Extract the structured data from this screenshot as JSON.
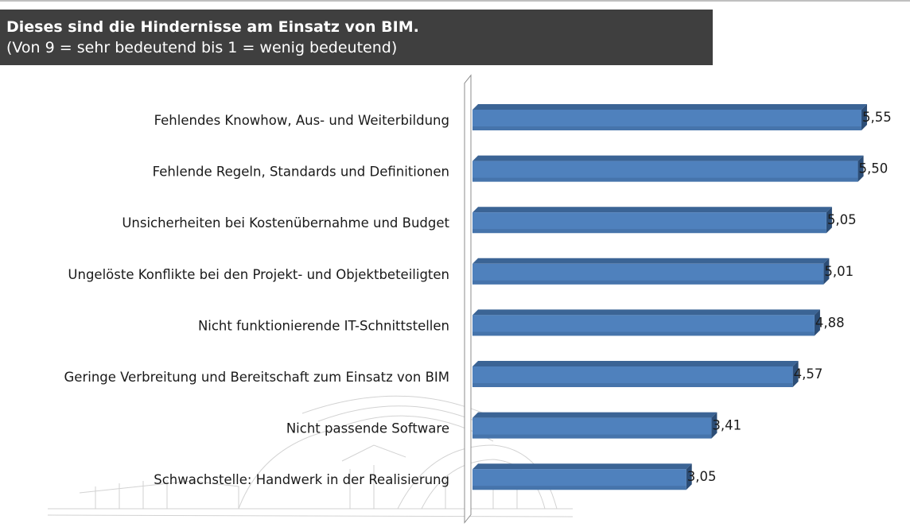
{
  "header": {
    "title": "Dieses sind die Hindernisse am Einsatz von BIM.",
    "subtitle": "(Von 9 = sehr bedeutend bis 1 = wenig bedeutend)"
  },
  "colors": {
    "bar_front": "#4f81bd",
    "bar_top": "#3b6495",
    "bar_side": "#2c4d76",
    "title_bg": "#3f3f3f"
  },
  "chart_data": {
    "type": "bar",
    "orientation": "horizontal",
    "title": "Dieses sind die Hindernisse am Einsatz von BIM.",
    "subtitle": "(Von 9 = sehr bedeutend bis 1 = wenig bedeutend)",
    "categories": [
      "Fehlendes Knowhow, Aus- und Weiterbildung",
      "Fehlende Regeln, Standards und Definitionen",
      "Unsicherheiten bei Kostenübernahme und Budget",
      "Ungelöste Konflikte bei den Projekt- und Objektbeteiligten",
      "Nicht funktionierende IT-Schnittstellen",
      "Geringe Verbreitung und Bereitschaft zum Einsatz von BIM",
      "Nicht passende Software",
      "Schwachstelle: Handwerk in der Realisierung"
    ],
    "values": [
      5.55,
      5.5,
      5.05,
      5.01,
      4.88,
      4.57,
      3.41,
      3.05
    ],
    "value_labels": [
      "5,55",
      "5,50",
      "5,05",
      "5,01",
      "4,88",
      "4,57",
      "3,41",
      "3,05"
    ],
    "xlim": [
      0,
      6
    ],
    "xlabel": "",
    "ylabel": "",
    "grid": false,
    "legend": "none",
    "style": "3d"
  }
}
